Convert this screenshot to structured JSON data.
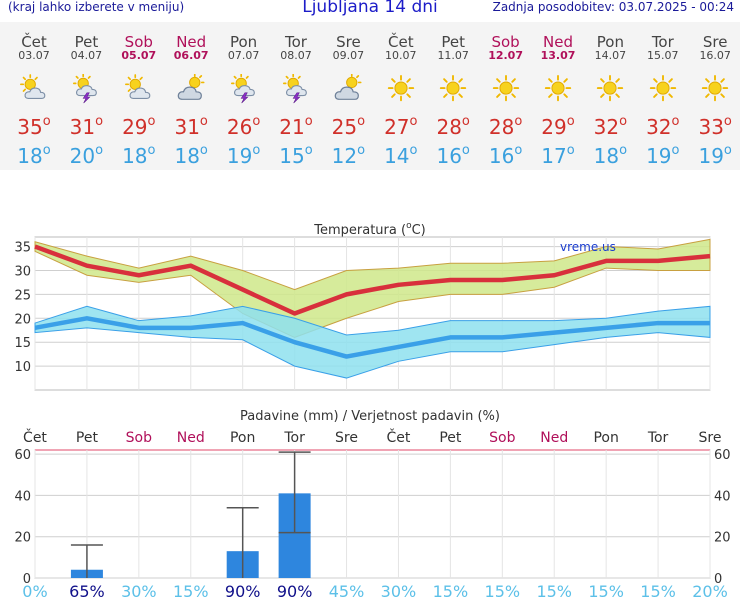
{
  "header": {
    "left_note": "(kraj lahko izberete v meniju)",
    "title": "Ljubljana 14 dni",
    "updated": "Zadnja posodobitev: 03.07.2025 - 00:24"
  },
  "days": [
    {
      "name": "Čet",
      "date": "03.07",
      "icon": "sun-cloud-icon",
      "tmax": "35",
      "tmin": "18",
      "weekend": false
    },
    {
      "name": "Pet",
      "date": "04.07",
      "icon": "sun-thunder-icon",
      "tmax": "31",
      "tmin": "20",
      "weekend": false
    },
    {
      "name": "Sob",
      "date": "05.07",
      "icon": "sun-cloud-icon",
      "tmax": "29",
      "tmin": "18",
      "weekend": true
    },
    {
      "name": "Ned",
      "date": "06.07",
      "icon": "cloudy-sun-icon",
      "tmax": "31",
      "tmin": "18",
      "weekend": true
    },
    {
      "name": "Pon",
      "date": "07.07",
      "icon": "sun-thunder-icon",
      "tmax": "26",
      "tmin": "19",
      "weekend": false
    },
    {
      "name": "Tor",
      "date": "08.07",
      "icon": "sun-thunder-icon",
      "tmax": "21",
      "tmin": "15",
      "weekend": false
    },
    {
      "name": "Sre",
      "date": "09.07",
      "icon": "cloudy-sun-icon",
      "tmax": "25",
      "tmin": "12",
      "weekend": false
    },
    {
      "name": "Čet",
      "date": "10.07",
      "icon": "sun-icon",
      "tmax": "27",
      "tmin": "14",
      "weekend": false
    },
    {
      "name": "Pet",
      "date": "11.07",
      "icon": "sun-icon",
      "tmax": "28",
      "tmin": "16",
      "weekend": false
    },
    {
      "name": "Sob",
      "date": "12.07",
      "icon": "sun-icon",
      "tmax": "28",
      "tmin": "16",
      "weekend": true
    },
    {
      "name": "Ned",
      "date": "13.07",
      "icon": "sun-icon",
      "tmax": "29",
      "tmin": "17",
      "weekend": true
    },
    {
      "name": "Pon",
      "date": "14.07",
      "icon": "sun-icon",
      "tmax": "32",
      "tmin": "18",
      "weekend": false
    },
    {
      "name": "Tor",
      "date": "15.07",
      "icon": "sun-icon",
      "tmax": "32",
      "tmin": "19",
      "weekend": false
    },
    {
      "name": "Sre",
      "date": "16.07",
      "icon": "sun-icon",
      "tmax": "33",
      "tmin": "19",
      "weekend": false
    }
  ],
  "colors": {
    "max_line": "#d8303c",
    "max_band": "#cfe88a",
    "min_line": "#3aa0e8",
    "min_band": "#8ee0ee",
    "bar": "#2e86de",
    "weekend": "#b0105a"
  },
  "chart_data": [
    {
      "type": "line",
      "title": "Temperatura (°C)",
      "title_main": "Temperatura (",
      "title_unit": "o",
      "title_end": "C)",
      "watermark": "vreme.us",
      "categories": [
        "03.07",
        "04.07",
        "05.07",
        "06.07",
        "07.07",
        "08.07",
        "09.07",
        "10.07",
        "11.07",
        "12.07",
        "13.07",
        "14.07",
        "15.07",
        "16.07"
      ],
      "ylim": [
        5,
        37
      ],
      "yticks": [
        "10",
        "15",
        "20",
        "25",
        "30",
        "35"
      ],
      "grid": true,
      "series": [
        {
          "values": [
            35,
            31,
            29,
            31,
            26,
            21,
            25,
            27,
            28,
            28,
            29,
            32,
            32,
            33
          ]
        },
        {
          "values": [
            18,
            20,
            18,
            18,
            19,
            15,
            12,
            14,
            16,
            16,
            17,
            18,
            19,
            19
          ]
        }
      ],
      "max_band": {
        "upper": [
          36,
          33,
          30.5,
          33,
          30,
          26,
          30,
          30.5,
          31.5,
          31.5,
          32,
          35,
          34.5,
          36.5
        ],
        "lower": [
          34,
          29,
          27.5,
          29,
          21,
          16,
          20,
          23.5,
          25,
          25,
          26.5,
          30.5,
          30,
          30
        ]
      },
      "min_band": {
        "upper": [
          19,
          22.5,
          19.5,
          20.5,
          22.5,
          20,
          16.5,
          17.5,
          19.5,
          19.5,
          19.5,
          20,
          21.5,
          22.5
        ],
        "lower": [
          17,
          18,
          17,
          16,
          15.5,
          10,
          7.5,
          11,
          13,
          13,
          14.5,
          16,
          17,
          16
        ]
      }
    },
    {
      "type": "bar",
      "title": "Padavine (mm) / Verjetnost padavin (%)",
      "categories": [
        "Čet",
        "Pet",
        "Sob",
        "Ned",
        "Pon",
        "Tor",
        "Sre",
        "Čet",
        "Pet",
        "Sob",
        "Ned",
        "Pon",
        "Tor",
        "Sre"
      ],
      "weekend": [
        false,
        false,
        true,
        true,
        false,
        false,
        false,
        false,
        false,
        true,
        true,
        false,
        false,
        false
      ],
      "ylim": [
        0,
        62
      ],
      "yticks": [
        "0",
        "20",
        "40",
        "60"
      ],
      "grid": true,
      "values": [
        0,
        4,
        0,
        0,
        13,
        41,
        0,
        0,
        0,
        0,
        0,
        0,
        0,
        0
      ],
      "error_low": [
        null,
        0,
        null,
        null,
        0,
        22,
        null,
        null,
        null,
        null,
        null,
        null,
        null,
        null
      ],
      "error_high": [
        null,
        16,
        null,
        null,
        34,
        61,
        null,
        null,
        null,
        null,
        null,
        null,
        null,
        null
      ],
      "probability": [
        "0%",
        "65%",
        "30%",
        "15%",
        "90%",
        "90%",
        "45%",
        "30%",
        "15%",
        "15%",
        "15%",
        "15%",
        "15%",
        "20%"
      ]
    }
  ]
}
